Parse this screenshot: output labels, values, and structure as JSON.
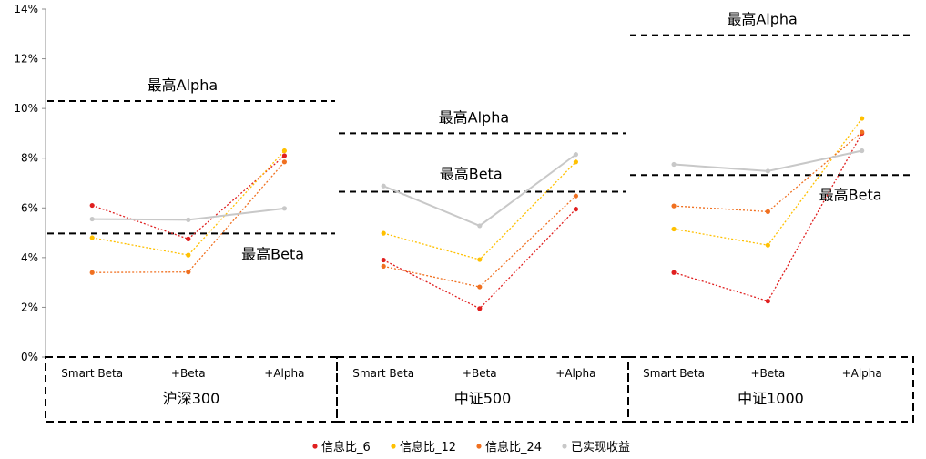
{
  "chart_data": {
    "type": "line",
    "title": "",
    "xlabel": "",
    "ylabel": "",
    "ylim": [
      0,
      0.14
    ],
    "y_ticks": [
      "0%",
      "2%",
      "4%",
      "6%",
      "8%",
      "10%",
      "12%",
      "14%"
    ],
    "grid": false,
    "legend_position": "bottom",
    "categories": [
      "Smart Beta",
      "+Beta",
      "+Alpha"
    ],
    "groups": [
      {
        "name": "沪深300",
        "series": {
          "信息比_6": [
            0.061,
            0.0475,
            0.081
          ],
          "信息比_12": [
            0.048,
            0.041,
            0.083
          ],
          "信息比_24": [
            0.034,
            0.0342,
            0.0785
          ],
          "已实现收益": [
            0.0555,
            0.0552,
            0.0598
          ]
        },
        "max_alpha": {
          "label": "最高Alpha",
          "value": 0.103
        },
        "max_beta": {
          "label": "最高Beta",
          "value": 0.0497
        }
      },
      {
        "name": "中证500",
        "series": {
          "信息比_6": [
            0.039,
            0.0195,
            0.0595
          ],
          "信息比_12": [
            0.0498,
            0.0392,
            0.0785
          ],
          "信息比_24": [
            0.0365,
            0.0282,
            0.0648
          ],
          "已实现收益": [
            0.0688,
            0.0528,
            0.0815
          ]
        },
        "max_alpha": {
          "label": "最高Alpha",
          "value": 0.09
        },
        "max_beta": {
          "label": "最高Beta",
          "value": 0.0665
        }
      },
      {
        "name": "中证1000",
        "series": {
          "信息比_6": [
            0.034,
            0.0225,
            0.09
          ],
          "信息比_12": [
            0.0515,
            0.045,
            0.096
          ],
          "信息比_24": [
            0.0608,
            0.0585,
            0.0905
          ],
          "已实现收益": [
            0.0775,
            0.0748,
            0.083
          ]
        },
        "max_alpha": {
          "label": "最高Alpha",
          "value": 0.1295
        },
        "max_beta": {
          "label": "最高Beta",
          "value": 0.0732
        }
      }
    ],
    "series": [
      {
        "name": "信息比_6",
        "color": "#e01f1f"
      },
      {
        "name": "信息比_12",
        "color": "#ffc000"
      },
      {
        "name": "信息比_24",
        "color": "#f07020"
      },
      {
        "name": "已实现收益",
        "color": "#c8c8c8"
      }
    ]
  }
}
